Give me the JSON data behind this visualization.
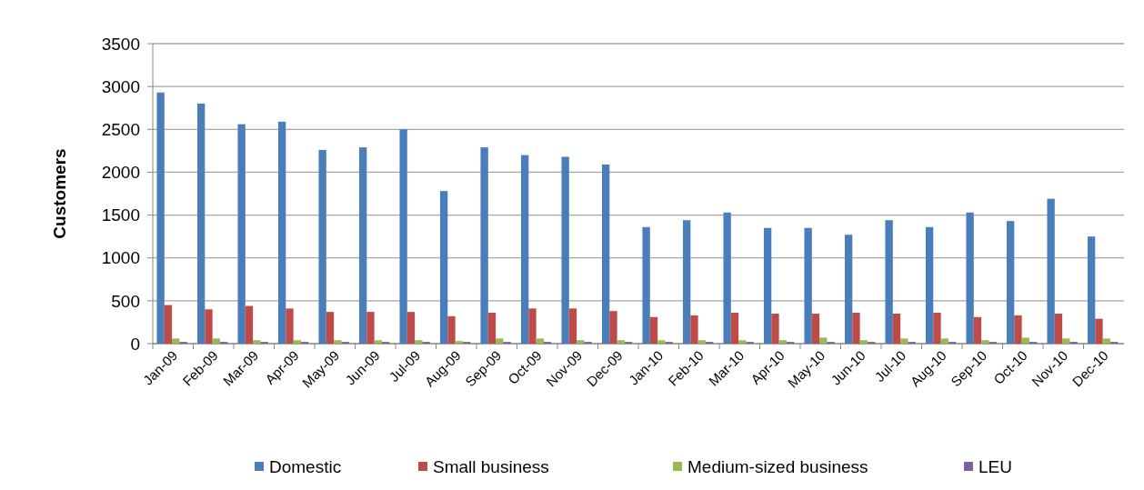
{
  "chart_data": {
    "type": "bar",
    "ylabel": "Customers",
    "categories": [
      "Jan-09",
      "Feb-09",
      "Mar-09",
      "Apr-09",
      "May-09",
      "Jun-09",
      "Jul-09",
      "Aug-09",
      "Sep-09",
      "Oct-09",
      "Nov-09",
      "Dec-09",
      "Jan-10",
      "Feb-10",
      "Mar-10",
      "Apr-10",
      "May-10",
      "Jun-10",
      "Jul-10",
      "Aug-10",
      "Sep-10",
      "Oct-10",
      "Nov-10",
      "Dec-10"
    ],
    "series": [
      {
        "name": "Domestic",
        "color": "#4a7ebb",
        "values": [
          2930,
          2800,
          2560,
          2590,
          2260,
          2290,
          2500,
          1780,
          2290,
          2200,
          2180,
          2090,
          1360,
          1440,
          1530,
          1350,
          1350,
          1270,
          1440,
          1360,
          1530,
          1430,
          1690,
          1250
        ]
      },
      {
        "name": "Small business",
        "color": "#be4b48",
        "values": [
          450,
          400,
          440,
          410,
          370,
          370,
          370,
          320,
          360,
          410,
          410,
          380,
          310,
          330,
          360,
          350,
          350,
          360,
          350,
          360,
          310,
          330,
          350,
          290
        ]
      },
      {
        "name": "Medium-sized business",
        "color": "#98b954",
        "values": [
          60,
          60,
          40,
          40,
          40,
          40,
          40,
          30,
          60,
          60,
          40,
          40,
          40,
          40,
          40,
          40,
          70,
          40,
          60,
          60,
          40,
          70,
          60,
          60
        ]
      },
      {
        "name": "LEU",
        "color": "#7d60a0",
        "values": [
          20,
          20,
          20,
          20,
          20,
          20,
          20,
          20,
          20,
          20,
          20,
          20,
          20,
          20,
          20,
          20,
          20,
          20,
          20,
          20,
          20,
          20,
          20,
          20
        ]
      }
    ],
    "ylim": [
      0,
      3500
    ],
    "yticks": [
      0,
      500,
      1000,
      1500,
      2000,
      2500,
      3000,
      3500
    ],
    "grid": "y",
    "legend": "bottom"
  }
}
